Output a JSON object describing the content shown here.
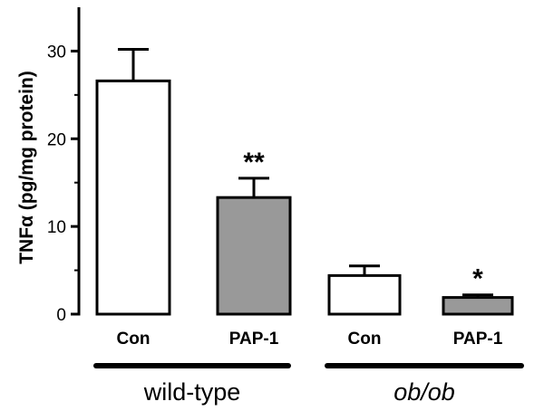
{
  "chart_data": {
    "type": "bar",
    "ylabel": "TNFα (pg/mg protein)",
    "ylim": [
      0,
      35
    ],
    "yticks": [
      0,
      10,
      20,
      30
    ],
    "categories": [
      "Con",
      "PAP-1",
      "Con",
      "PAP-1"
    ],
    "values": [
      26.6,
      13.3,
      4.4,
      1.9
    ],
    "errors": [
      3.6,
      2.2,
      1.1,
      0.3
    ],
    "significance": [
      "",
      "**",
      "",
      "*"
    ],
    "bar_colors": [
      "#ffffff",
      "#999999",
      "#ffffff",
      "#999999"
    ],
    "groups": [
      {
        "label": "wild-type",
        "categories": [
          0,
          1
        ],
        "italic": false
      },
      {
        "label": "ob/ob",
        "categories": [
          2,
          3
        ],
        "italic": true
      }
    ],
    "grid": false,
    "legend": "none"
  }
}
